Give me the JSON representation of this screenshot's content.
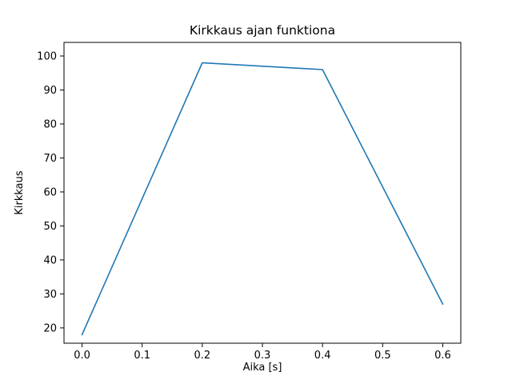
{
  "figure": {
    "background": "#ffffff"
  },
  "chart_data": {
    "type": "line",
    "title": "Kirkkaus ajan funktiona",
    "xlabel": "Aika [s]",
    "ylabel": "Kirkkaus",
    "x": [
      0.0,
      0.2,
      0.4,
      0.6
    ],
    "values": [
      18,
      98,
      96,
      27
    ],
    "series": [
      {
        "name": "kirkkaus",
        "x": [
          0.0,
          0.2,
          0.4,
          0.6
        ],
        "values": [
          18,
          98,
          96,
          27
        ]
      }
    ],
    "xlim": [
      -0.03,
      0.63
    ],
    "ylim": [
      15.5,
      104
    ],
    "xtick_values": [
      0.0,
      0.1,
      0.2,
      0.3,
      0.4,
      0.5,
      0.6
    ],
    "xtick_labels": [
      "0.0",
      "0.1",
      "0.2",
      "0.3",
      "0.4",
      "0.5",
      "0.6"
    ],
    "ytick_values": [
      20,
      30,
      40,
      50,
      60,
      70,
      80,
      90,
      100
    ],
    "ytick_labels": [
      "20",
      "30",
      "40",
      "50",
      "60",
      "70",
      "80",
      "90",
      "100"
    ],
    "grid": false,
    "legend": "none",
    "line_color": "#1f77b4",
    "line_width": 1.6,
    "spine_color": "#000000",
    "tick_color": "#000000"
  }
}
